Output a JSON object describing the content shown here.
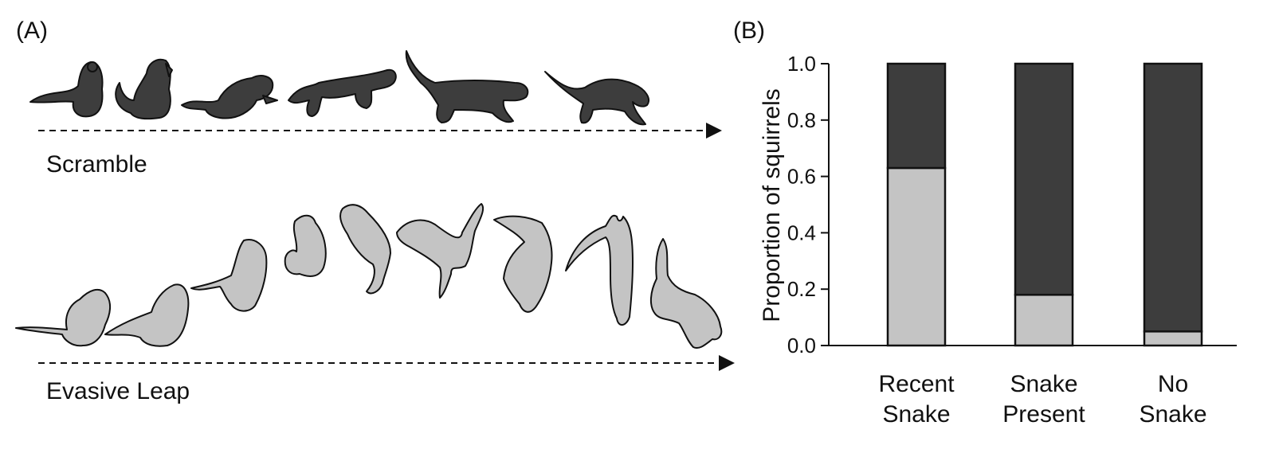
{
  "panel_a": {
    "label": "(A)",
    "scramble_label": "Scramble",
    "leap_label": "Evasive Leap"
  },
  "panel_b": {
    "label": "(B)"
  },
  "colors": {
    "scramble": "#3d3d3d",
    "evasive_leap": "#c4c4c4",
    "outline": "#111111"
  },
  "chart_data": {
    "type": "bar",
    "stacked": true,
    "categories": [
      [
        "Recent",
        "Snake"
      ],
      [
        "Snake",
        "Present"
      ],
      [
        "No",
        "Snake"
      ]
    ],
    "series": [
      {
        "color": "#c4c4c4",
        "values": [
          0.63,
          0.18,
          0.05
        ]
      },
      {
        "color": "#3d3d3d",
        "values": [
          0.37,
          0.82,
          0.95
        ]
      }
    ],
    "ylabel": "Proportion of squirrels",
    "ylim": [
      0,
      1.0
    ],
    "yticks": [
      "0.0",
      "0.2",
      "0.4",
      "0.6",
      "0.8",
      "1.0"
    ],
    "grid": false
  }
}
